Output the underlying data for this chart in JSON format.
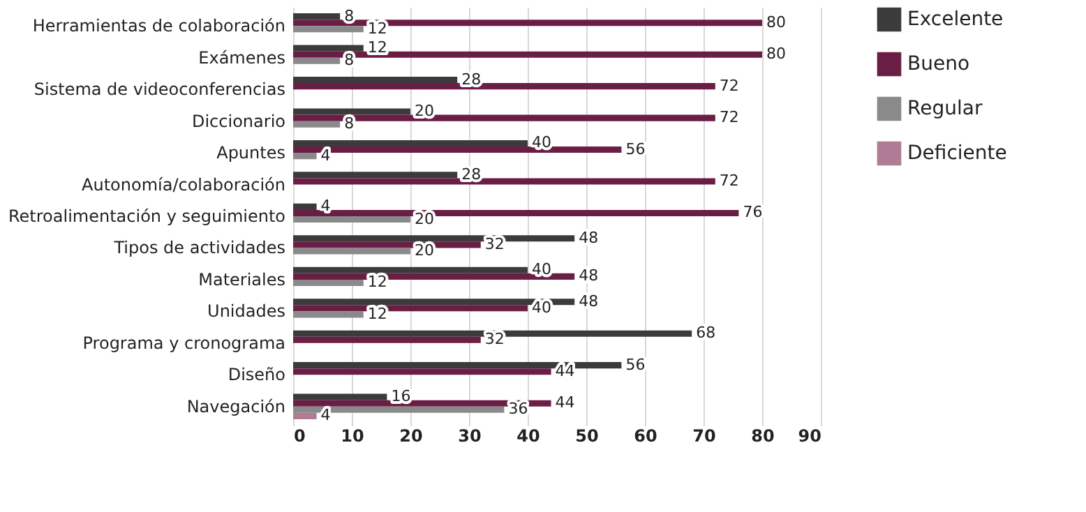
{
  "chart_data": {
    "type": "bar",
    "orientation": "horizontal",
    "categories": [
      "Herramientas de colaboración",
      "Exámenes",
      "Sistema de videoconferencias",
      "Diccionario",
      "Apuntes",
      "Autonomía/colaboración",
      "Retroalimentación y seguimiento",
      "Tipos de actividades",
      "Materiales",
      "Unidades",
      "Programa y cronograma",
      "Diseño",
      "Navegación"
    ],
    "series": [
      {
        "name": "Excelente",
        "color": "#3b3b3b",
        "values": [
          8,
          12,
          28,
          20,
          40,
          28,
          4,
          48,
          40,
          48,
          68,
          56,
          16
        ]
      },
      {
        "name": "Bueno",
        "color": "#6b1e45",
        "values": [
          80,
          80,
          72,
          72,
          56,
          72,
          76,
          32,
          48,
          40,
          32,
          44,
          44
        ]
      },
      {
        "name": "Regular",
        "color": "#8a8a8a",
        "values": [
          12,
          8,
          null,
          8,
          4,
          null,
          20,
          20,
          12,
          12,
          null,
          null,
          36
        ]
      },
      {
        "name": "Deficiente",
        "color": "#b07b94",
        "values": [
          null,
          null,
          null,
          null,
          null,
          null,
          null,
          null,
          null,
          null,
          null,
          null,
          4
        ]
      }
    ],
    "xlim": [
      0,
      90
    ],
    "xticks": [
      0,
      10,
      20,
      30,
      40,
      50,
      60,
      70,
      80,
      90
    ],
    "grid": "x",
    "legend": "right",
    "data_labels": true
  }
}
